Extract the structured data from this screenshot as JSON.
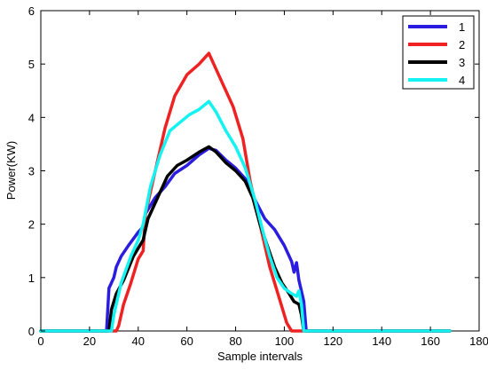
{
  "chart_data": {
    "type": "line",
    "xlabel": "Sample intervals",
    "ylabel": "Power(KW)",
    "xlim": [
      0,
      180
    ],
    "ylim": [
      0,
      6
    ],
    "xticks": [
      0,
      20,
      40,
      60,
      80,
      100,
      120,
      140,
      160,
      180
    ],
    "yticks": [
      0,
      1,
      2,
      3,
      4,
      5,
      6
    ],
    "grid": false,
    "legend_position": "top-right",
    "series": [
      {
        "name": "1",
        "color": "#2b1de0",
        "points": [
          [
            0,
            0
          ],
          [
            27,
            0
          ],
          [
            28,
            0.8
          ],
          [
            30,
            1.0
          ],
          [
            31,
            1.2
          ],
          [
            33,
            1.4
          ],
          [
            36,
            1.6
          ],
          [
            40,
            1.85
          ],
          [
            42,
            1.95
          ],
          [
            43,
            2.2
          ],
          [
            47,
            2.5
          ],
          [
            51,
            2.7
          ],
          [
            55,
            2.95
          ],
          [
            60,
            3.1
          ],
          [
            65,
            3.3
          ],
          [
            69,
            3.42
          ],
          [
            72,
            3.38
          ],
          [
            76,
            3.2
          ],
          [
            80,
            3.05
          ],
          [
            84,
            2.85
          ],
          [
            88,
            2.45
          ],
          [
            92,
            2.1
          ],
          [
            96,
            1.9
          ],
          [
            100,
            1.6
          ],
          [
            103,
            1.3
          ],
          [
            104,
            1.1
          ],
          [
            105,
            1.28
          ],
          [
            106,
            0.95
          ],
          [
            107,
            0.75
          ],
          [
            108,
            0.55
          ],
          [
            109,
            0
          ],
          [
            168,
            0
          ]
        ]
      },
      {
        "name": "2",
        "color": "#ee2222",
        "points": [
          [
            0,
            0
          ],
          [
            31,
            0
          ],
          [
            32,
            0.1
          ],
          [
            34,
            0.5
          ],
          [
            37,
            0.9
          ],
          [
            40,
            1.35
          ],
          [
            42,
            1.5
          ],
          [
            43,
            2.2
          ],
          [
            47,
            3.0
          ],
          [
            51,
            3.8
          ],
          [
            55,
            4.4
          ],
          [
            60,
            4.8
          ],
          [
            65,
            5.0
          ],
          [
            69,
            5.2
          ],
          [
            71,
            5.0
          ],
          [
            75,
            4.6
          ],
          [
            79,
            4.2
          ],
          [
            83,
            3.6
          ],
          [
            86,
            2.8
          ],
          [
            90,
            2.0
          ],
          [
            94,
            1.2
          ],
          [
            98,
            0.6
          ],
          [
            101,
            0.15
          ],
          [
            103,
            0
          ],
          [
            168,
            0
          ]
        ]
      },
      {
        "name": "3",
        "color": "#000000",
        "points": [
          [
            0,
            0
          ],
          [
            28,
            0
          ],
          [
            29,
            0.4
          ],
          [
            31,
            0.7
          ],
          [
            34,
            0.95
          ],
          [
            38,
            1.4
          ],
          [
            42,
            1.7
          ],
          [
            44,
            2.1
          ],
          [
            48,
            2.5
          ],
          [
            52,
            2.9
          ],
          [
            56,
            3.1
          ],
          [
            60,
            3.2
          ],
          [
            65,
            3.35
          ],
          [
            69,
            3.45
          ],
          [
            72,
            3.35
          ],
          [
            76,
            3.15
          ],
          [
            80,
            3.0
          ],
          [
            84,
            2.8
          ],
          [
            87,
            2.5
          ],
          [
            90,
            2.0
          ],
          [
            93,
            1.6
          ],
          [
            96,
            1.2
          ],
          [
            99,
            0.9
          ],
          [
            102,
            0.7
          ],
          [
            104,
            0.55
          ],
          [
            106,
            0.5
          ],
          [
            107,
            0.3
          ],
          [
            108,
            0
          ],
          [
            168,
            0
          ]
        ]
      },
      {
        "name": "4",
        "color": "#14f2f2",
        "points": [
          [
            0,
            0
          ],
          [
            29,
            0
          ],
          [
            30,
            0.3
          ],
          [
            33,
            0.9
          ],
          [
            37,
            1.4
          ],
          [
            40,
            1.7
          ],
          [
            42,
            2.0
          ],
          [
            45,
            2.7
          ],
          [
            49,
            3.3
          ],
          [
            53,
            3.75
          ],
          [
            57,
            3.9
          ],
          [
            61,
            4.05
          ],
          [
            65,
            4.15
          ],
          [
            69,
            4.3
          ],
          [
            72,
            4.1
          ],
          [
            76,
            3.75
          ],
          [
            80,
            3.45
          ],
          [
            84,
            3.05
          ],
          [
            88,
            2.45
          ],
          [
            91,
            1.9
          ],
          [
            94,
            1.4
          ],
          [
            97,
            1.0
          ],
          [
            100,
            0.8
          ],
          [
            103,
            0.7
          ],
          [
            105,
            0.65
          ],
          [
            106,
            0.75
          ],
          [
            107,
            0.5
          ],
          [
            108,
            0
          ],
          [
            168,
            0
          ]
        ]
      }
    ]
  }
}
